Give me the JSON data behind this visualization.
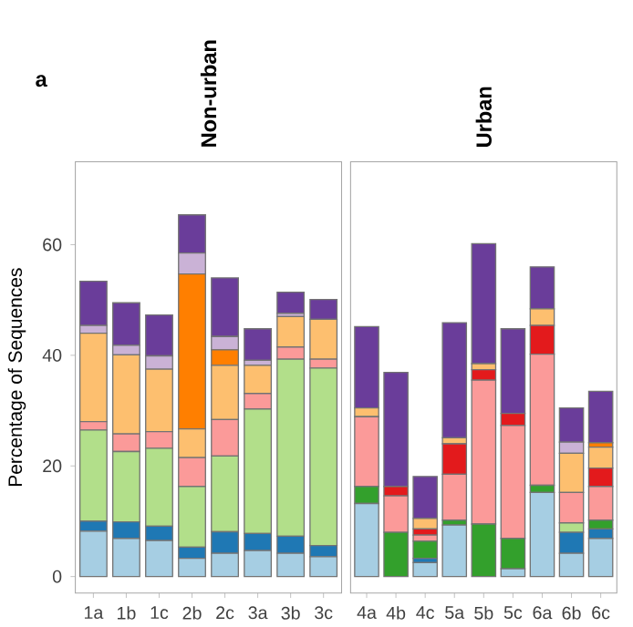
{
  "chart_data": [
    {
      "type": "bar",
      "stacked": true,
      "title": "Non-urban",
      "ylabel": "Percentage of Sequences",
      "annotations": [
        "a"
      ],
      "categories": [
        "1a",
        "1b",
        "1c",
        "2b",
        "2c",
        "3a",
        "3b",
        "3c"
      ],
      "ylim": [
        -3,
        75
      ],
      "yticks": [
        0,
        20,
        40,
        60
      ],
      "grid": false,
      "series": [
        {
          "color": "#a6cee3",
          "values": [
            8.2,
            6.9,
            6.5,
            3.3,
            4.2,
            4.7,
            4.2,
            3.6
          ]
        },
        {
          "color": "#1f78b4",
          "values": [
            1.8,
            3.0,
            2.6,
            2.0,
            3.9,
            3.1,
            3.1,
            2.0
          ]
        },
        {
          "color": "#b2df8a",
          "values": [
            16.5,
            12.7,
            14.1,
            11.0,
            13.7,
            22.5,
            32.0,
            32.1
          ]
        },
        {
          "color": "#fb9a99",
          "values": [
            1.5,
            3.2,
            3.0,
            5.2,
            6.6,
            2.8,
            2.2,
            1.6
          ]
        },
        {
          "color": "#fdbf6f",
          "values": [
            16.0,
            14.3,
            11.3,
            5.2,
            9.8,
            5.1,
            5.5,
            7.2
          ]
        },
        {
          "color": "#ff7f00",
          "values": [
            null,
            null,
            null,
            28.0,
            2.8,
            null,
            null,
            null
          ]
        },
        {
          "color": "#cab2d6",
          "values": [
            1.4,
            1.7,
            2.4,
            3.8,
            2.4,
            0.9,
            0.6,
            null
          ]
        },
        {
          "color": "#6a3d9a",
          "values": [
            8.0,
            7.7,
            7.4,
            6.9,
            10.6,
            5.7,
            3.8,
            3.6
          ]
        }
      ]
    },
    {
      "type": "bar",
      "stacked": true,
      "title": "Urban",
      "tick_labels": "x",
      "categories": [
        "4a",
        "4b",
        "4c",
        "5a",
        "5b",
        "5c",
        "6a",
        "6b",
        "6c"
      ],
      "ylim": [
        -3,
        75
      ],
      "yticks": [
        0,
        20,
        40,
        60
      ],
      "grid": false,
      "series": [
        {
          "color": "#a6cee3",
          "values": [
            13.2,
            null,
            2.5,
            9.3,
            null,
            1.4,
            15.2,
            4.2,
            6.9
          ]
        },
        {
          "color": "#1f78b4",
          "values": [
            null,
            null,
            0.8,
            null,
            null,
            null,
            null,
            3.8,
            1.7
          ]
        },
        {
          "color": "#b2df8a",
          "values": [
            null,
            null,
            null,
            null,
            null,
            null,
            null,
            1.7,
            null
          ]
        },
        {
          "color": "#33a02c",
          "values": [
            3.1,
            8.0,
            3.1,
            0.9,
            9.5,
            5.5,
            1.3,
            null,
            1.6
          ]
        },
        {
          "color": "#fb9a99",
          "values": [
            12.6,
            6.6,
            1.1,
            8.3,
            26.0,
            20.4,
            23.7,
            5.5,
            6.1
          ]
        },
        {
          "color": "#e31a1c",
          "values": [
            null,
            1.7,
            1.1,
            5.5,
            1.9,
            2.2,
            5.2,
            null,
            3.3
          ]
        },
        {
          "color": "#fdbf6f",
          "values": [
            1.6,
            null,
            1.9,
            1.1,
            1.1,
            null,
            3.0,
            7.1,
            3.8
          ]
        },
        {
          "color": "#ff7f00",
          "values": [
            null,
            null,
            null,
            null,
            null,
            null,
            null,
            null,
            0.8
          ]
        },
        {
          "color": "#cab2d6",
          "values": [
            null,
            null,
            null,
            null,
            null,
            null,
            null,
            2.0,
            null
          ]
        },
        {
          "color": "#6a3d9a",
          "values": [
            14.7,
            20.6,
            7.6,
            20.8,
            21.7,
            15.3,
            7.6,
            6.2,
            9.3
          ]
        }
      ]
    }
  ]
}
